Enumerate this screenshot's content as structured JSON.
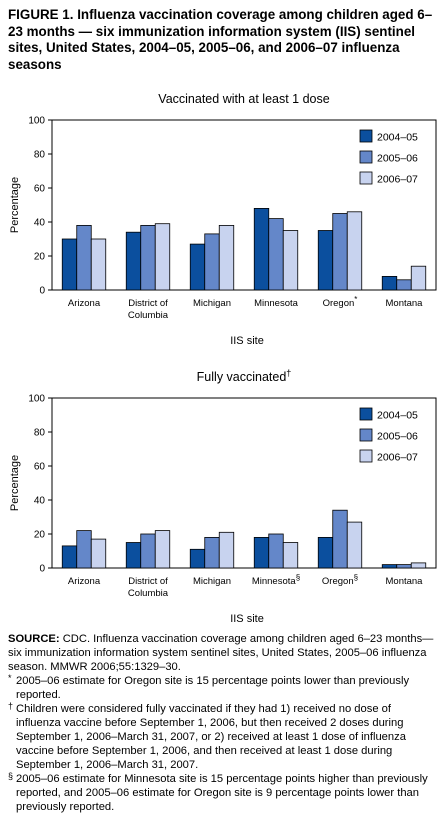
{
  "figure_title": "FIGURE 1. Influenza vaccination coverage among children aged 6–23 months — six immunization information system (IIS) sentinel sites, United States, 2004–05, 2005–06, and 2006–07 influenza seasons",
  "colors": {
    "s1": "#0b4f9e",
    "s2": "#6487c9",
    "s3": "#c8d3ef",
    "stroke": "#000000"
  },
  "chart_data": [
    {
      "type": "bar",
      "title": "Vaccinated with at least 1 dose",
      "title_mark": "",
      "ylabel": "Percentage",
      "xlabel": "IIS site",
      "ylim": [
        0,
        100
      ],
      "yticks": [
        0,
        20,
        40,
        60,
        80,
        100
      ],
      "legend_position": "top-right",
      "categories": [
        {
          "lines": [
            "Arizona"
          ],
          "mark": ""
        },
        {
          "lines": [
            "District of",
            "Columbia"
          ],
          "mark": ""
        },
        {
          "lines": [
            "Michigan"
          ],
          "mark": ""
        },
        {
          "lines": [
            "Minnesota"
          ],
          "mark": ""
        },
        {
          "lines": [
            "Oregon"
          ],
          "mark": "*"
        },
        {
          "lines": [
            "Montana"
          ],
          "mark": ""
        }
      ],
      "series": [
        {
          "name": "2004–05",
          "color": "#0b4f9e",
          "values": [
            30,
            34,
            27,
            48,
            35,
            8
          ]
        },
        {
          "name": "2005–06",
          "color": "#6487c9",
          "values": [
            38,
            38,
            33,
            42,
            45,
            6
          ]
        },
        {
          "name": "2006–07",
          "color": "#c8d3ef",
          "values": [
            30,
            39,
            38,
            35,
            46,
            14
          ]
        }
      ]
    },
    {
      "type": "bar",
      "title": "Fully vaccinated",
      "title_mark": "†",
      "ylabel": "Percentage",
      "xlabel": "IIS site",
      "ylim": [
        0,
        100
      ],
      "yticks": [
        0,
        20,
        40,
        60,
        80,
        100
      ],
      "legend_position": "top-right",
      "categories": [
        {
          "lines": [
            "Arizona"
          ],
          "mark": ""
        },
        {
          "lines": [
            "District of",
            "Columbia"
          ],
          "mark": ""
        },
        {
          "lines": [
            "Michigan"
          ],
          "mark": ""
        },
        {
          "lines": [
            "Minnesota"
          ],
          "mark": "§"
        },
        {
          "lines": [
            "Oregon"
          ],
          "mark": "§"
        },
        {
          "lines": [
            "Montana"
          ],
          "mark": ""
        }
      ],
      "series": [
        {
          "name": "2004–05",
          "color": "#0b4f9e",
          "values": [
            13,
            15,
            11,
            18,
            18,
            2
          ]
        },
        {
          "name": "2005–06",
          "color": "#6487c9",
          "values": [
            22,
            20,
            18,
            20,
            34,
            2
          ]
        },
        {
          "name": "2006–07",
          "color": "#c8d3ef",
          "values": [
            17,
            22,
            21,
            15,
            27,
            3
          ]
        }
      ]
    }
  ],
  "source": {
    "label": "SOURCE:",
    "text": " CDC. Influenza vaccination coverage among children aged 6–23 months—six immunization information system sentinel sites, United States, 2005–06 influenza season. MMWR 2006;55:1329–30."
  },
  "footnotes": [
    {
      "mark": "*",
      "text": "2005–06 estimate for Oregon site is 15 percentage points lower than previously reported."
    },
    {
      "mark": "†",
      "text": "Children were considered fully vaccinated if they had 1) received no dose of influenza vaccine before September 1, 2006, but then received 2 doses during September 1, 2006–March 31, 2007, or 2) received at least 1 dose of influenza vaccine before September 1, 2006, and then received at least 1 dose during September 1, 2006–March 31, 2007."
    },
    {
      "mark": "§",
      "text": "2005–06 estimate for Minnesota site is 15 percentage points higher than previously reported, and 2005–06 estimate for Oregon site is 9 percentage points lower than previously reported."
    }
  ]
}
